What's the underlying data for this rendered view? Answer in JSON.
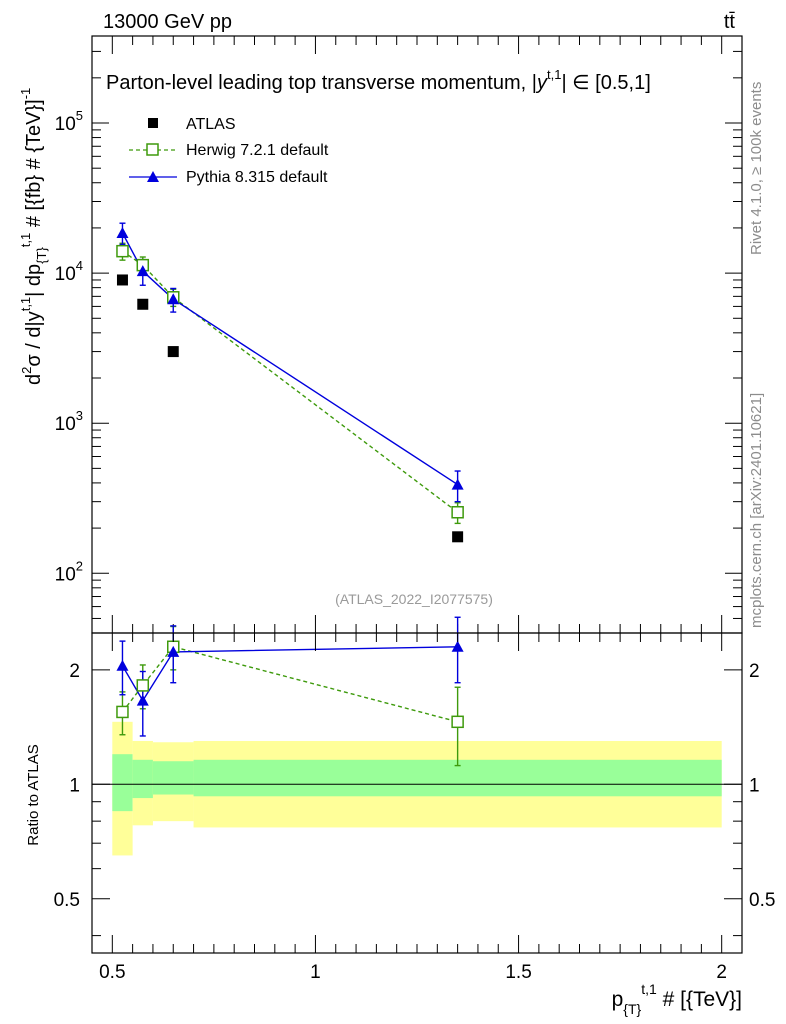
{
  "chart_data": {
    "type": "scatter",
    "header_left": "13000 GeV pp",
    "header_right": "tt̄",
    "title": "Parton-level leading top transverse momentum, |y^{t,1}| ∈ [0.5,1]",
    "title_main": "Parton-level leading top transverse momentum, |",
    "title_sym": "y",
    "title_sup": "t,1",
    "title_tail": "| ∈ [0.5,1]",
    "ylabel": "d²σ / d|y^{t,1}| dp_{T}^{t,1} # [{fb} # {TeV}]^{-1}",
    "ylabel_a": "d",
    "ylabel_b": "σ / d|y",
    "ylabel_c": "| dp",
    "ylabel_d": " # [{fb} # {TeV}]",
    "sup_2": "2",
    "sup_t1": "t,1",
    "sub_T": "{T}",
    "sup_m1": "-1",
    "xlabel": "p_{T}^{t,1} # [{TeV}]",
    "xlabel_p": "p",
    "xlabel_tail": " # [{TeV}]",
    "ratio_ylabel": "Ratio to ATLAS",
    "side_label_1": "Rivet 4.1.0, ≥ 100k events",
    "side_label_2": "mcplots.cern.ch [arXiv:2401.10621]",
    "reference": "(ATLAS_2022_I2077575)",
    "xlim": [
      0.45,
      2.05
    ],
    "ylim_main": [
      40,
      380000
    ],
    "ylim_ratio": [
      0.36,
      2.5
    ],
    "x_ticks": [
      "0.5",
      "1",
      "1.5",
      "2"
    ],
    "x_tick_values": [
      0.5,
      1,
      1.5,
      2
    ],
    "y_ticks_main": [
      {
        "base": "10",
        "exp": "2",
        "value": 100
      },
      {
        "base": "10",
        "exp": "3",
        "value": 1000
      },
      {
        "base": "10",
        "exp": "4",
        "value": 10000
      },
      {
        "base": "10",
        "exp": "5",
        "value": 100000
      }
    ],
    "y_ticks_ratio": [
      "0.5",
      "1",
      "2"
    ],
    "y_tick_values_ratio": [
      0.5,
      1,
      2
    ],
    "legend_position": "top-left",
    "series": [
      {
        "name": "ATLAS",
        "x": [
          0.525,
          0.575,
          0.65,
          1.35
        ],
        "y": [
          9000,
          6200,
          3000,
          175
        ],
        "marker": "filled-square",
        "color": "#000000"
      },
      {
        "name": "Herwig 7.2.1 default",
        "x": [
          0.525,
          0.575,
          0.65,
          1.35
        ],
        "y": [
          14000,
          11300,
          6900,
          255
        ],
        "yerr": [
          1800,
          1500,
          900,
          40
        ],
        "marker": "open-square",
        "line": "dashed",
        "color": "#3e9a0c"
      },
      {
        "name": "Pythia 8.315 default",
        "x": [
          0.525,
          0.575,
          0.65,
          1.35
        ],
        "y": [
          18500,
          10300,
          6700,
          390
        ],
        "yerr": [
          3000,
          2000,
          1200,
          90
        ],
        "marker": "filled-triangle",
        "line": "solid",
        "color": "#0000dd"
      }
    ],
    "ratio_series": [
      {
        "name": "Herwig 7.2.1 default",
        "x": [
          0.525,
          0.575,
          0.65,
          1.35
        ],
        "y": [
          1.55,
          1.82,
          2.3,
          1.46
        ],
        "yerr": [
          0.2,
          0.24,
          0.3,
          0.34
        ]
      },
      {
        "name": "Pythia 8.315 default",
        "x": [
          0.525,
          0.575,
          0.65,
          1.35
        ],
        "y": [
          2.05,
          1.66,
          2.23,
          2.3
        ],
        "yerr": [
          0.33,
          0.32,
          0.38,
          0.45
        ]
      }
    ],
    "bands": {
      "edges": [
        0.5,
        0.55,
        0.6,
        0.7,
        2.0
      ],
      "inner_low": [
        0.85,
        0.92,
        0.94,
        0.93
      ],
      "inner_high": [
        1.2,
        1.16,
        1.15,
        1.16
      ],
      "outer_low": [
        0.65,
        0.78,
        0.8,
        0.77
      ],
      "outer_high": [
        1.46,
        1.3,
        1.29,
        1.3
      ],
      "inner_color": "#99ff99",
      "outer_color": "#ffff99"
    }
  }
}
